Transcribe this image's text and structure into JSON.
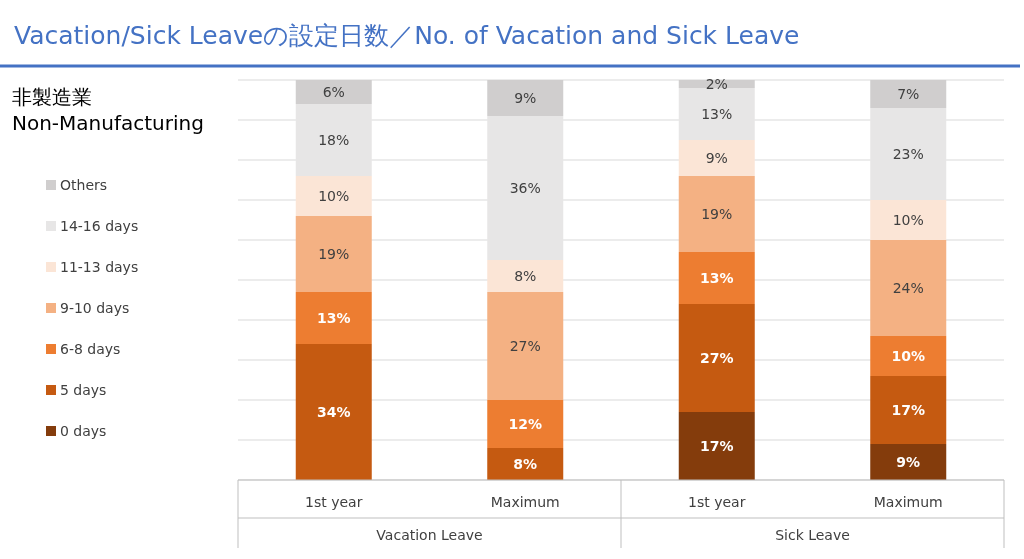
{
  "chart_data": {
    "type": "bar",
    "stacked": true,
    "title": "Vacation/Sick Leaveの設定日数／No. of Vacation and Sick Leave",
    "subtitle": "非製造業\nNon-Manufacturing",
    "categories": [
      "1st year",
      "Maximum",
      "1st year",
      "Maximum"
    ],
    "annotations": [
      "Vacation Leave",
      "Sick Leave"
    ],
    "series": [
      {
        "name": "0 days",
        "color": "#843c0c",
        "values": [
          null,
          null,
          17,
          9
        ],
        "value_labels": [
          null,
          null,
          "17%",
          "9%"
        ]
      },
      {
        "name": "5 days",
        "color": "#c55a11",
        "values": [
          34,
          8,
          27,
          17
        ],
        "value_labels": [
          "34%",
          "8%",
          "27%",
          "17%"
        ]
      },
      {
        "name": "6-8 days",
        "color": "#ed7d31",
        "values": [
          13,
          12,
          13,
          10
        ],
        "value_labels": [
          "13%",
          "12%",
          "13%",
          "10%"
        ]
      },
      {
        "name": "9-10 days",
        "color": "#f4b183",
        "values": [
          19,
          27,
          19,
          24
        ],
        "value_labels": [
          "19%",
          "27%",
          "19%",
          "24%"
        ]
      },
      {
        "name": "11-13 days",
        "color": "#fbe5d6",
        "values": [
          10,
          8,
          9,
          10
        ],
        "value_labels": [
          "10%",
          "8%",
          "9%",
          "10%"
        ]
      },
      {
        "name": "14-16 days",
        "color": "#e7e6e6",
        "values": [
          18,
          36,
          13,
          23
        ],
        "value_labels": [
          "18%",
          "36%",
          "13%",
          "23%"
        ]
      },
      {
        "name": "Others",
        "color": "#d0cece",
        "values": [
          6,
          9,
          2,
          7
        ],
        "value_labels": [
          "6%",
          "9%",
          "2%",
          "7%"
        ]
      }
    ],
    "ylim": [
      0,
      100
    ],
    "yticks": [
      {
        "value": 0,
        "label": null
      },
      {
        "value": 10,
        "label": null
      },
      {
        "value": 20,
        "label": null
      },
      {
        "value": 30,
        "label": null
      },
      {
        "value": 40,
        "label": null
      },
      {
        "value": 50,
        "label": null
      },
      {
        "value": 60,
        "label": null
      },
      {
        "value": 70,
        "label": null
      },
      {
        "value": 80,
        "label": null
      },
      {
        "value": 90,
        "label": null
      },
      {
        "value": 100,
        "label": null
      }
    ],
    "tick_labels": "x",
    "grid": "y",
    "legend": "left"
  }
}
